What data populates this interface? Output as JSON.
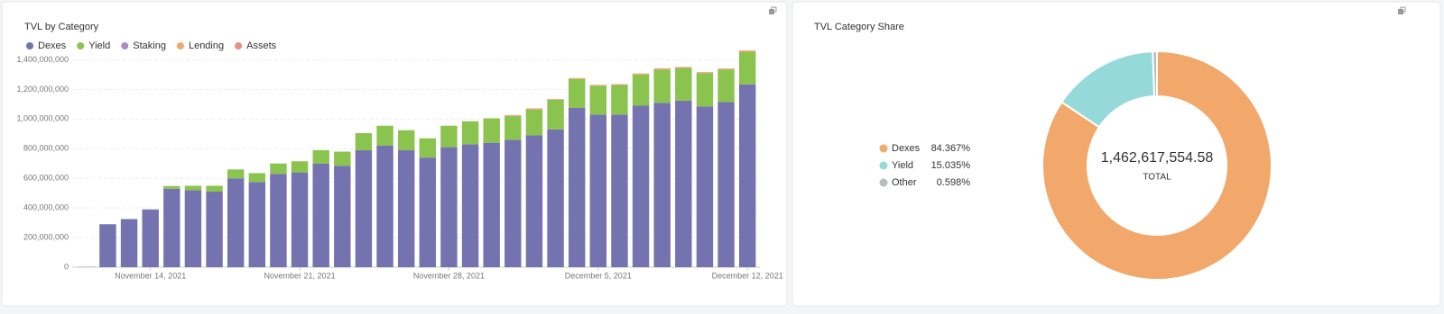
{
  "chart_data": [
    {
      "type": "stacked-bar",
      "title": "TVL by Category",
      "x": [
        "2021-11-11",
        "2021-11-12",
        "2021-11-13",
        "2021-11-14",
        "2021-11-15",
        "2021-11-16",
        "2021-11-17",
        "2021-11-18",
        "2021-11-19",
        "2021-11-20",
        "2021-11-21",
        "2021-11-22",
        "2021-11-23",
        "2021-11-24",
        "2021-11-25",
        "2021-11-26",
        "2021-11-27",
        "2021-11-28",
        "2021-11-29",
        "2021-11-30",
        "2021-12-01",
        "2021-12-02",
        "2021-12-03",
        "2021-12-04",
        "2021-12-05",
        "2021-12-06",
        "2021-12-07",
        "2021-12-08",
        "2021-12-09",
        "2021-12-10",
        "2021-12-11",
        "2021-12-12"
      ],
      "series": [
        {
          "name": "Dexes",
          "color": "#7473b0",
          "values": [
            2000000,
            290000000,
            325000000,
            390000000,
            530000000,
            520000000,
            510000000,
            600000000,
            575000000,
            630000000,
            640000000,
            700000000,
            685000000,
            790000000,
            820000000,
            790000000,
            740000000,
            810000000,
            830000000,
            840000000,
            860000000,
            890000000,
            930000000,
            1075000000,
            1030000000,
            1030000000,
            1090000000,
            1110000000,
            1125000000,
            1085000000,
            1115000000,
            1234000000
          ]
        },
        {
          "name": "Yield",
          "color": "#8bc34f",
          "values": [
            0,
            0,
            0,
            0,
            18000000,
            30000000,
            40000000,
            60000000,
            60000000,
            70000000,
            75000000,
            90000000,
            95000000,
            115000000,
            135000000,
            135000000,
            130000000,
            145000000,
            155000000,
            165000000,
            160000000,
            175000000,
            200000000,
            195000000,
            195000000,
            200000000,
            210000000,
            225000000,
            220000000,
            225000000,
            220000000,
            220000000
          ]
        },
        {
          "name": "Staking",
          "color": "#a98bc9",
          "values": [
            0,
            0,
            0,
            0,
            0,
            0,
            0,
            0,
            0,
            0,
            0,
            0,
            0,
            0,
            0,
            0,
            0,
            0,
            0,
            0,
            0,
            0,
            0,
            0,
            0,
            0,
            0,
            0,
            0,
            0,
            0,
            0
          ]
        },
        {
          "name": "Lending",
          "color": "#f2a86b",
          "values": [
            0,
            0,
            0,
            0,
            0,
            0,
            0,
            0,
            0,
            0,
            0,
            0,
            0,
            0,
            0,
            0,
            0,
            0,
            0,
            0,
            5000000,
            6000000,
            4000000,
            5000000,
            4000000,
            4000000,
            6000000,
            6000000,
            5000000,
            6000000,
            5000000,
            7000000
          ]
        },
        {
          "name": "Assets",
          "color": "#ec8c8c",
          "values": [
            0,
            0,
            0,
            0,
            0,
            0,
            0,
            0,
            0,
            0,
            0,
            0,
            0,
            0,
            0,
            0,
            0,
            0,
            0,
            0,
            2000000,
            2000000,
            2000000,
            2000000,
            2000000,
            2000000,
            2000000,
            2000000,
            2000000,
            2000000,
            2000000,
            2000000
          ]
        }
      ],
      "ylim": [
        0,
        1500000000
      ],
      "yticks": [
        0,
        {
          "value": 200000000,
          "label": "200,000,000"
        },
        {
          "value": 400000000,
          "label": "400,000,000"
        },
        {
          "value": 600000000,
          "label": "600,000,000"
        },
        {
          "value": 800000000,
          "label": "800,000,000"
        },
        {
          "value": 1000000000,
          "label": "1,000,000,000"
        },
        {
          "value": 1200000000,
          "label": "1,200,000,000"
        },
        {
          "value": 1400000000,
          "label": "1,400,000,000"
        }
      ],
      "xticks": [
        {
          "value": "2021-11-14",
          "label": "November 14, 2021"
        },
        {
          "value": "2021-11-21",
          "label": "November 21, 2021"
        },
        {
          "value": "2021-11-28",
          "label": "November 28, 2021"
        },
        {
          "value": "2021-12-05",
          "label": "December 5, 2021"
        },
        {
          "value": "2021-12-12",
          "label": "December 12, 2021"
        }
      ],
      "grid": true
    },
    {
      "type": "donut",
      "title": "TVL Category Share",
      "categories": [
        "Dexes",
        "Yield",
        "Other"
      ],
      "values": [
        84.367,
        15.035,
        0.598
      ],
      "value_labels": [
        "84.367%",
        "15.035%",
        "0.598%"
      ],
      "colors": [
        "#f2a86b",
        "#96d9d9",
        "#b9bcc4"
      ],
      "center_label": "1,462,617,554.58",
      "center_sublabel": "TOTAL"
    }
  ]
}
